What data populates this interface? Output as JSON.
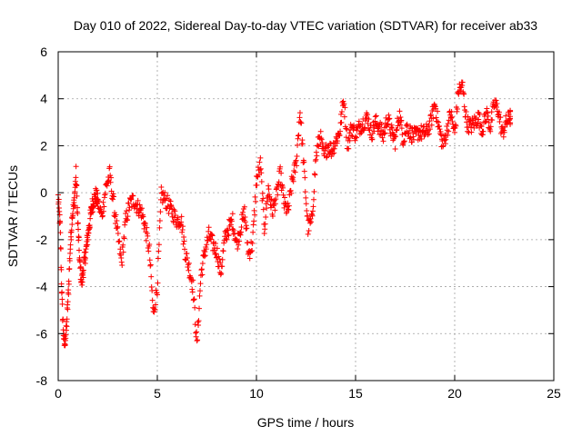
{
  "chart_data": {
    "type": "scatter",
    "title": "Day 010 of 2022, Sidereal Day-to-day VTEC variation (SDTVAR) for receiver ab33",
    "xlabel": "GPS time / hours",
    "ylabel": "SDTVAR / TECUs",
    "xlim": [
      0,
      25
    ],
    "ylim": [
      -8,
      6
    ],
    "xticks": [
      0,
      5,
      10,
      15,
      20,
      25
    ],
    "yticks": [
      -8,
      -6,
      -4,
      -2,
      0,
      2,
      4,
      6
    ],
    "grid": true,
    "marker": "+",
    "color": "#ff0000",
    "series": [
      {
        "name": "SDTVAR",
        "note": "dense trace, approximate centre values (x in hours, y in TECU)",
        "x": [
          0.0,
          0.1,
          0.2,
          0.3,
          0.4,
          0.5,
          0.6,
          0.7,
          0.8,
          0.9,
          1.0,
          1.1,
          1.2,
          1.3,
          1.4,
          1.5,
          1.6,
          1.7,
          1.8,
          1.9,
          2.0,
          2.2,
          2.4,
          2.6,
          2.8,
          3.0,
          3.2,
          3.4,
          3.6,
          3.8,
          4.0,
          4.2,
          4.4,
          4.6,
          4.8,
          5.0,
          5.2,
          5.4,
          5.6,
          5.8,
          6.0,
          6.2,
          6.4,
          6.6,
          6.8,
          7.0,
          7.2,
          7.4,
          7.6,
          7.8,
          8.0,
          8.2,
          8.4,
          8.6,
          8.8,
          9.0,
          9.2,
          9.4,
          9.6,
          9.8,
          10.0,
          10.2,
          10.4,
          10.6,
          10.8,
          11.0,
          11.2,
          11.4,
          11.6,
          11.8,
          12.0,
          12.2,
          12.4,
          12.6,
          12.8,
          13.0,
          13.2,
          13.4,
          13.6,
          13.8,
          14.0,
          14.2,
          14.4,
          14.6,
          14.8,
          15.0,
          15.2,
          15.4,
          15.6,
          15.8,
          16.0,
          16.2,
          16.4,
          16.6,
          16.8,
          17.0,
          17.2,
          17.4,
          17.6,
          17.8,
          18.0,
          18.2,
          18.4,
          18.6,
          18.8,
          19.0,
          19.2,
          19.4,
          19.6,
          19.8,
          20.0,
          20.2,
          20.4,
          20.6,
          20.8,
          21.0,
          21.2,
          21.4,
          21.6,
          21.8,
          22.0,
          22.2,
          22.4,
          22.6,
          22.8
        ],
        "y": [
          -0.2,
          -1.5,
          -4.8,
          -6.5,
          -6.0,
          -4.5,
          -2.5,
          -1.0,
          -0.5,
          0.8,
          -1.5,
          -3.2,
          -3.8,
          -3.0,
          -2.5,
          -1.8,
          -1.2,
          -0.6,
          -0.3,
          -0.1,
          -0.4,
          -1.0,
          0.2,
          0.8,
          -0.5,
          -1.8,
          -3.0,
          -1.2,
          -0.5,
          -0.3,
          -0.6,
          -0.8,
          -1.5,
          -2.5,
          -5.2,
          -4.0,
          -0.1,
          -0.3,
          -0.6,
          -0.9,
          -1.2,
          -1.1,
          -2.5,
          -3.2,
          -4.0,
          -6.5,
          -3.5,
          -2.5,
          -1.8,
          -2.2,
          -2.5,
          -3.4,
          -2.0,
          -1.5,
          -1.2,
          -2.2,
          -1.5,
          -0.8,
          -2.6,
          -2.2,
          0.5,
          1.2,
          -1.5,
          0.2,
          -0.8,
          -0.2,
          0.8,
          -0.5,
          -0.8,
          0.5,
          1.2,
          3.5,
          1.0,
          -1.5,
          -1.2,
          1.5,
          2.5,
          1.5,
          2.0,
          1.8,
          2.2,
          2.6,
          4.0,
          2.0,
          2.8,
          2.5,
          2.8,
          3.0,
          3.2,
          2.5,
          3.0,
          2.8,
          2.4,
          3.2,
          2.6,
          2.2,
          3.4,
          2.3,
          2.8,
          2.5,
          2.4,
          2.6,
          2.5,
          2.6,
          3.0,
          3.8,
          2.8,
          2.0,
          2.6,
          3.4,
          2.5,
          4.4,
          4.5,
          3.0,
          2.8,
          3.0,
          3.2,
          2.7,
          3.4,
          2.8,
          3.8,
          3.5,
          2.5,
          3.0,
          3.2
        ]
      }
    ]
  }
}
